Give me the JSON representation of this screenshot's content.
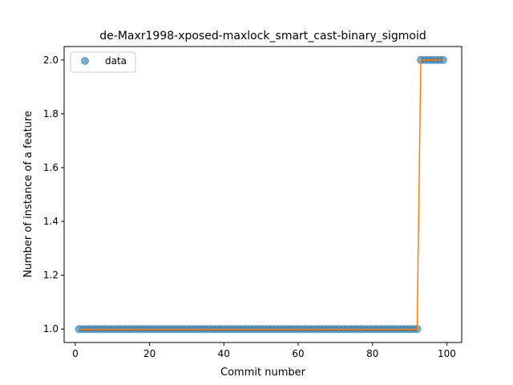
{
  "chart_data": {
    "type": "scatter",
    "title": "de-Maxr1998-xposed-maxlock_smart_cast-binary_sigmoid",
    "xlabel": "Commit number",
    "ylabel": "Number of instance of a feature",
    "xlim": [
      -3,
      104
    ],
    "ylim": [
      0.95,
      2.05
    ],
    "xticks": [
      0,
      20,
      40,
      60,
      80,
      100
    ],
    "yticks": [
      1.0,
      1.2,
      1.4,
      1.6,
      1.8,
      2.0
    ],
    "xtick_labels": [
      "0",
      "20",
      "40",
      "60",
      "80",
      "100"
    ],
    "ytick_labels": [
      "1.0",
      "1.2",
      "1.4",
      "1.6",
      "1.8",
      "2.0"
    ],
    "legend": {
      "placement": "top-left",
      "entries": [
        "data"
      ]
    },
    "grid": false,
    "series": [
      {
        "name": "data",
        "kind": "scatter",
        "color": "#1f77b4",
        "x": [
          1,
          2,
          3,
          4,
          5,
          6,
          7,
          8,
          9,
          10,
          11,
          12,
          13,
          14,
          15,
          16,
          17,
          18,
          19,
          20,
          21,
          22,
          23,
          24,
          25,
          26,
          27,
          28,
          29,
          30,
          31,
          32,
          33,
          34,
          35,
          36,
          37,
          38,
          39,
          40,
          41,
          42,
          43,
          44,
          45,
          46,
          47,
          48,
          49,
          50,
          51,
          52,
          53,
          54,
          55,
          56,
          57,
          58,
          59,
          60,
          61,
          62,
          63,
          64,
          65,
          66,
          67,
          68,
          69,
          70,
          71,
          72,
          73,
          74,
          75,
          76,
          77,
          78,
          79,
          80,
          81,
          82,
          83,
          84,
          85,
          86,
          87,
          88,
          89,
          90,
          91,
          92,
          93,
          94,
          95,
          96,
          97,
          98,
          99
        ],
        "y": [
          1,
          1,
          1,
          1,
          1,
          1,
          1,
          1,
          1,
          1,
          1,
          1,
          1,
          1,
          1,
          1,
          1,
          1,
          1,
          1,
          1,
          1,
          1,
          1,
          1,
          1,
          1,
          1,
          1,
          1,
          1,
          1,
          1,
          1,
          1,
          1,
          1,
          1,
          1,
          1,
          1,
          1,
          1,
          1,
          1,
          1,
          1,
          1,
          1,
          1,
          1,
          1,
          1,
          1,
          1,
          1,
          1,
          1,
          1,
          1,
          1,
          1,
          1,
          1,
          1,
          1,
          1,
          1,
          1,
          1,
          1,
          1,
          1,
          1,
          1,
          1,
          1,
          1,
          1,
          1,
          1,
          1,
          1,
          1,
          1,
          1,
          1,
          1,
          1,
          1,
          1,
          1,
          2,
          2,
          2,
          2,
          2,
          2,
          2
        ]
      },
      {
        "kind": "line",
        "color": "#ff7f0e",
        "x": [
          1,
          92,
          93,
          99
        ],
        "y": [
          1,
          1,
          2,
          2
        ]
      }
    ]
  }
}
